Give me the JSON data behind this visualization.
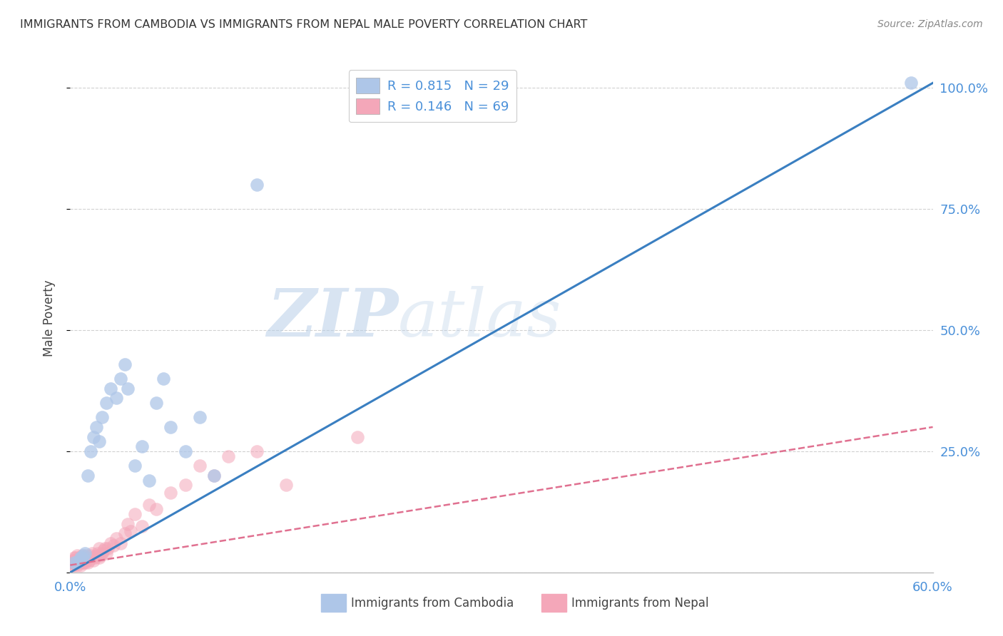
{
  "title": "IMMIGRANTS FROM CAMBODIA VS IMMIGRANTS FROM NEPAL MALE POVERTY CORRELATION CHART",
  "source": "Source: ZipAtlas.com",
  "legend_label_cambodia": "Immigrants from Cambodia",
  "legend_label_nepal": "Immigrants from Nepal",
  "ylabel": "Male Poverty",
  "xlim": [
    0.0,
    0.6
  ],
  "ylim": [
    0.0,
    1.05
  ],
  "legend_R1": "R = 0.815",
  "legend_N1": "N = 29",
  "legend_R2": "R = 0.146",
  "legend_N2": "N = 69",
  "color_cambodia": "#aec6e8",
  "color_nepal": "#f4a7b9",
  "color_line_cambodia": "#3a7fc1",
  "color_line_nepal": "#e07090",
  "color_axis_text": "#4a90d9",
  "watermark_zip": "ZIP",
  "watermark_atlas": "atlas",
  "background_color": "#ffffff",
  "grid_color": "#cccccc",
  "cambodia_x": [
    0.003,
    0.005,
    0.007,
    0.008,
    0.009,
    0.01,
    0.012,
    0.014,
    0.016,
    0.018,
    0.02,
    0.022,
    0.025,
    0.028,
    0.032,
    0.035,
    0.038,
    0.04,
    0.045,
    0.05,
    0.055,
    0.06,
    0.065,
    0.07,
    0.08,
    0.09,
    0.1,
    0.13,
    0.585
  ],
  "cambodia_y": [
    0.02,
    0.02,
    0.03,
    0.03,
    0.035,
    0.04,
    0.2,
    0.25,
    0.28,
    0.3,
    0.27,
    0.32,
    0.35,
    0.38,
    0.36,
    0.4,
    0.43,
    0.38,
    0.22,
    0.26,
    0.19,
    0.35,
    0.4,
    0.3,
    0.25,
    0.32,
    0.2,
    0.8,
    1.01
  ],
  "nepal_x": [
    0.001,
    0.002,
    0.002,
    0.002,
    0.003,
    0.003,
    0.003,
    0.003,
    0.004,
    0.004,
    0.004,
    0.005,
    0.005,
    0.005,
    0.005,
    0.006,
    0.006,
    0.006,
    0.007,
    0.007,
    0.007,
    0.007,
    0.008,
    0.008,
    0.008,
    0.009,
    0.009,
    0.01,
    0.01,
    0.01,
    0.011,
    0.011,
    0.012,
    0.012,
    0.013,
    0.014,
    0.015,
    0.015,
    0.016,
    0.017,
    0.018,
    0.019,
    0.02,
    0.02,
    0.021,
    0.022,
    0.023,
    0.024,
    0.025,
    0.026,
    0.028,
    0.03,
    0.032,
    0.035,
    0.038,
    0.04,
    0.042,
    0.045,
    0.05,
    0.055,
    0.06,
    0.07,
    0.08,
    0.09,
    0.1,
    0.11,
    0.13,
    0.15,
    0.2
  ],
  "nepal_y": [
    0.02,
    0.02,
    0.025,
    0.015,
    0.02,
    0.025,
    0.015,
    0.03,
    0.02,
    0.025,
    0.03,
    0.02,
    0.025,
    0.015,
    0.035,
    0.02,
    0.025,
    0.03,
    0.02,
    0.025,
    0.03,
    0.015,
    0.02,
    0.025,
    0.035,
    0.02,
    0.03,
    0.02,
    0.025,
    0.03,
    0.025,
    0.035,
    0.02,
    0.03,
    0.025,
    0.035,
    0.03,
    0.04,
    0.025,
    0.03,
    0.035,
    0.04,
    0.03,
    0.05,
    0.035,
    0.04,
    0.045,
    0.05,
    0.04,
    0.05,
    0.06,
    0.055,
    0.07,
    0.06,
    0.08,
    0.1,
    0.085,
    0.12,
    0.095,
    0.14,
    0.13,
    0.165,
    0.18,
    0.22,
    0.2,
    0.24,
    0.25,
    0.18,
    0.28
  ],
  "camb_line_x": [
    0.0,
    0.6
  ],
  "camb_line_y": [
    0.0,
    1.01
  ],
  "nepal_line_x": [
    0.0,
    0.6
  ],
  "nepal_line_y": [
    0.015,
    0.3
  ]
}
